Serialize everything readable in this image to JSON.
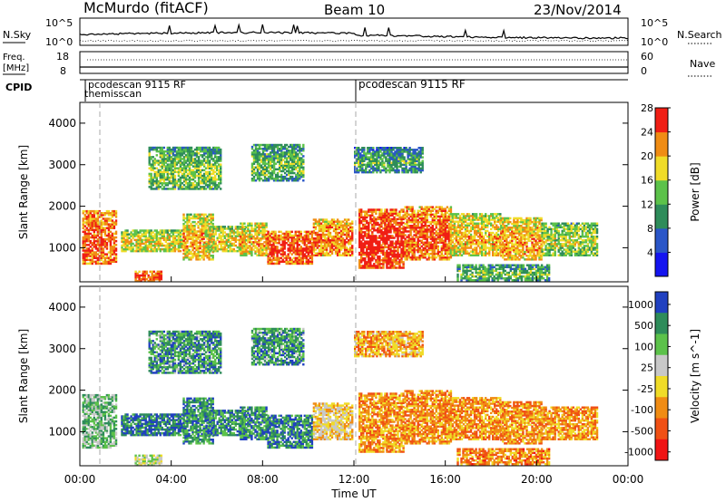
{
  "header": {
    "station": "McMurdo (fitACF)",
    "beam": "Beam 10",
    "date": "23/Nov/2014"
  },
  "panels": {
    "nsky": {
      "label": "N.Sky",
      "ytick_top": "10^5",
      "ytick_bottom": "10^0",
      "right_top": "10^5",
      "right_bottom": "10^0",
      "right_label": "N.Search"
    },
    "freq": {
      "label_line1": "Freq.",
      "label_line2": "[MHz]",
      "ytick_top": "18",
      "ytick_bottom": "8",
      "right_top": "60",
      "right_bottom": "0",
      "right_label": "Nave"
    },
    "cpid": {
      "label": "CPID",
      "entries": [
        {
          "text": "pcodescan 9115 RF",
          "time_hours": 0.9
        },
        {
          "text": "themisscan",
          "time_hours": 0.9
        },
        {
          "text": "pcodescan 9115 RF",
          "time_hours": 12.0
        }
      ]
    }
  },
  "chart_data": [
    {
      "type": "heatmap",
      "title": "",
      "xlabel": "Time UT",
      "ylabel": "Slant Range [km]",
      "xlim": [
        0,
        24
      ],
      "ylim": [
        180,
        4500
      ],
      "xticks": [
        "00:00",
        "04:00",
        "08:00",
        "12:00",
        "16:00",
        "20:00",
        "00:00"
      ],
      "yticks": [
        "1000",
        "2000",
        "3000",
        "4000"
      ],
      "colorbar": {
        "label": "Power [dB]",
        "ticks": [
          "4",
          "8",
          "12",
          "16",
          "20",
          "24",
          "28"
        ],
        "colors": [
          "#1414f0",
          "#2a56c8",
          "#2e8c5a",
          "#5cc24a",
          "#f0dc28",
          "#f08c14",
          "#f01e14"
        ]
      },
      "echo_regions": [
        {
          "t0": 0.1,
          "t1": 1.6,
          "r0": 600,
          "r1": 1900,
          "level": 0.75
        },
        {
          "t0": 1.8,
          "t1": 4.6,
          "r0": 900,
          "r1": 1400,
          "level": 0.55
        },
        {
          "t0": 2.4,
          "t1": 3.6,
          "r0": 180,
          "r1": 450,
          "level": 0.8
        },
        {
          "t0": 4.5,
          "t1": 5.8,
          "r0": 700,
          "r1": 1800,
          "level": 0.6
        },
        {
          "t0": 5.5,
          "t1": 7.2,
          "r0": 900,
          "r1": 1500,
          "level": 0.55
        },
        {
          "t0": 7.0,
          "t1": 8.2,
          "r0": 800,
          "r1": 1600,
          "level": 0.6
        },
        {
          "t0": 8.2,
          "t1": 10.2,
          "r0": 600,
          "r1": 1400,
          "level": 0.8
        },
        {
          "t0": 10.2,
          "t1": 11.9,
          "r0": 800,
          "r1": 1700,
          "level": 0.7
        },
        {
          "t0": 12.2,
          "t1": 14.2,
          "r0": 500,
          "r1": 1900,
          "level": 0.85
        },
        {
          "t0": 14.2,
          "t1": 16.2,
          "r0": 700,
          "r1": 2000,
          "level": 0.75
        },
        {
          "t0": 16.2,
          "t1": 18.4,
          "r0": 800,
          "r1": 1800,
          "level": 0.6
        },
        {
          "t0": 18.4,
          "t1": 20.2,
          "r0": 700,
          "r1": 1700,
          "level": 0.65
        },
        {
          "t0": 20.2,
          "t1": 22.6,
          "r0": 800,
          "r1": 1600,
          "level": 0.45
        },
        {
          "t0": 16.5,
          "t1": 20.5,
          "r0": 200,
          "r1": 600,
          "level": 0.35
        },
        {
          "t0": 3.0,
          "t1": 6.2,
          "r0": 2400,
          "r1": 3400,
          "level": 0.4
        },
        {
          "t0": 7.5,
          "t1": 9.8,
          "r0": 2600,
          "r1": 3500,
          "level": 0.35
        },
        {
          "t0": 12.0,
          "t1": 15.0,
          "r0": 2800,
          "r1": 3400,
          "level": 0.3
        }
      ]
    },
    {
      "type": "heatmap",
      "title": "",
      "xlabel": "Time UT",
      "ylabel": "Slant Range [km]",
      "xlim": [
        0,
        24
      ],
      "ylim": [
        180,
        4500
      ],
      "xticks": [
        "00:00",
        "04:00",
        "08:00",
        "12:00",
        "16:00",
        "20:00",
        "00:00"
      ],
      "yticks": [
        "1000",
        "2000",
        "3000",
        "4000"
      ],
      "colorbar": {
        "label": "Velocity [m s^-1]",
        "ticks": [
          "1000",
          "500",
          "100",
          "25",
          "-25",
          "-100",
          "-500",
          "-1000"
        ],
        "colors": [
          "#2040c0",
          "#2e8c5a",
          "#5cc24a",
          "#c8c8c8",
          "#f0dc28",
          "#f08c14",
          "#f05014",
          "#f01414"
        ]
      },
      "echo_regions": [
        {
          "t0": 0.1,
          "t1": 1.6,
          "r0": 600,
          "r1": 1900,
          "level": 0.3
        },
        {
          "t0": 1.8,
          "t1": 4.6,
          "r0": 900,
          "r1": 1400,
          "level": 0.15
        },
        {
          "t0": 2.4,
          "t1": 3.6,
          "r0": 180,
          "r1": 450,
          "level": 0.45
        },
        {
          "t0": 4.5,
          "t1": 5.8,
          "r0": 700,
          "r1": 1800,
          "level": 0.2
        },
        {
          "t0": 5.5,
          "t1": 7.2,
          "r0": 900,
          "r1": 1500,
          "level": 0.2
        },
        {
          "t0": 7.0,
          "t1": 8.2,
          "r0": 800,
          "r1": 1600,
          "level": 0.2
        },
        {
          "t0": 8.2,
          "t1": 10.2,
          "r0": 600,
          "r1": 1400,
          "level": 0.18
        },
        {
          "t0": 10.2,
          "t1": 11.9,
          "r0": 800,
          "r1": 1700,
          "level": 0.55
        },
        {
          "t0": 12.2,
          "t1": 14.2,
          "r0": 500,
          "r1": 1900,
          "level": 0.68
        },
        {
          "t0": 14.2,
          "t1": 16.2,
          "r0": 700,
          "r1": 2000,
          "level": 0.7
        },
        {
          "t0": 16.2,
          "t1": 18.4,
          "r0": 800,
          "r1": 1800,
          "level": 0.7
        },
        {
          "t0": 18.4,
          "t1": 20.2,
          "r0": 700,
          "r1": 1700,
          "level": 0.7
        },
        {
          "t0": 20.2,
          "t1": 22.6,
          "r0": 800,
          "r1": 1600,
          "level": 0.68
        },
        {
          "t0": 16.5,
          "t1": 20.5,
          "r0": 200,
          "r1": 600,
          "level": 0.72
        },
        {
          "t0": 3.0,
          "t1": 6.2,
          "r0": 2400,
          "r1": 3400,
          "level": 0.22
        },
        {
          "t0": 7.5,
          "t1": 9.8,
          "r0": 2600,
          "r1": 3500,
          "level": 0.22
        },
        {
          "t0": 12.0,
          "t1": 15.0,
          "r0": 2800,
          "r1": 3400,
          "level": 0.65
        }
      ]
    }
  ]
}
